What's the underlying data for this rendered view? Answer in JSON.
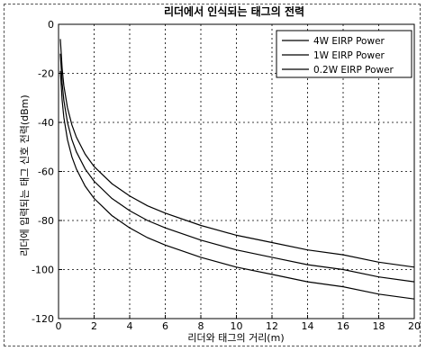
{
  "chart_data": {
    "type": "line",
    "title": "리더에서 인식되는 태그의 전력",
    "xlabel": "리더와 태그의 거리(m)",
    "ylabel": "리더에 입력되는 태그 신호 전력(dBm)",
    "xlim": [
      0,
      20
    ],
    "ylim": [
      -120,
      0
    ],
    "xticks": [
      0,
      2,
      4,
      6,
      8,
      10,
      12,
      14,
      16,
      18,
      20
    ],
    "yticks": [
      0,
      -20,
      -40,
      -60,
      -80,
      -100,
      -120
    ],
    "grid": true,
    "legend_position": "top-right",
    "series": [
      {
        "name": "4W EIRP Power",
        "color": "#000000",
        "x": [
          0.1,
          0.2,
          0.3,
          0.5,
          0.75,
          1,
          1.5,
          2,
          3,
          4,
          5,
          6,
          8,
          10,
          12,
          14,
          16,
          18,
          20
        ],
        "y": [
          -6,
          -18,
          -25,
          -34,
          -41,
          -46,
          -53,
          -58,
          -65,
          -70,
          -74,
          -77,
          -82,
          -86,
          -89,
          -92,
          -94,
          -97,
          -99
        ]
      },
      {
        "name": "1W EIRP Power",
        "color": "#000000",
        "x": [
          0.1,
          0.2,
          0.3,
          0.5,
          0.75,
          1,
          1.5,
          2,
          3,
          4,
          5,
          6,
          8,
          10,
          12,
          14,
          16,
          18,
          20
        ],
        "y": [
          -12,
          -24,
          -31,
          -40,
          -47,
          -52,
          -59,
          -64,
          -71,
          -76,
          -80,
          -83,
          -88,
          -92,
          -95,
          -98,
          -100,
          -103,
          -105
        ]
      },
      {
        "name": "0.2W EIRP Power",
        "color": "#000000",
        "x": [
          0.1,
          0.2,
          0.3,
          0.5,
          0.75,
          1,
          1.5,
          2,
          3,
          4,
          5,
          6,
          8,
          10,
          12,
          14,
          16,
          18,
          20
        ],
        "y": [
          -19,
          -31,
          -38,
          -47,
          -54,
          -59,
          -66,
          -71,
          -78,
          -83,
          -87,
          -90,
          -95,
          -99,
          -102,
          -105,
          -107,
          -110,
          -112
        ]
      }
    ]
  }
}
